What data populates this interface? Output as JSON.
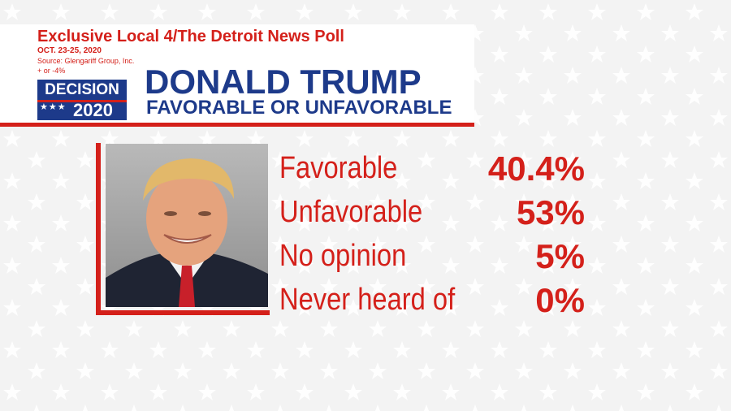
{
  "poll": {
    "headline": "Exclusive Local 4/The Detroit News Poll",
    "dates": "OCT. 23-25, 2020",
    "source": "Source: Glengariff Group, Inc.",
    "margin_of_error": "+ or -4%"
  },
  "badge": {
    "line1": "DECISION",
    "year": "2020"
  },
  "colors": {
    "accent_red": "#d4201a",
    "navy": "#1d3a8a",
    "background": "#f3f3f3"
  },
  "chart_data": {
    "type": "table",
    "title": "DONALD TRUMP",
    "subtitle": "FAVORABLE OR UNFAVORABLE",
    "rows": [
      {
        "label": "Favorable",
        "value": "40.4%"
      },
      {
        "label": "Unfavorable",
        "value": "53%"
      },
      {
        "label": "No opinion",
        "value": "5%"
      },
      {
        "label": "Never heard of",
        "value": "0%"
      }
    ]
  }
}
